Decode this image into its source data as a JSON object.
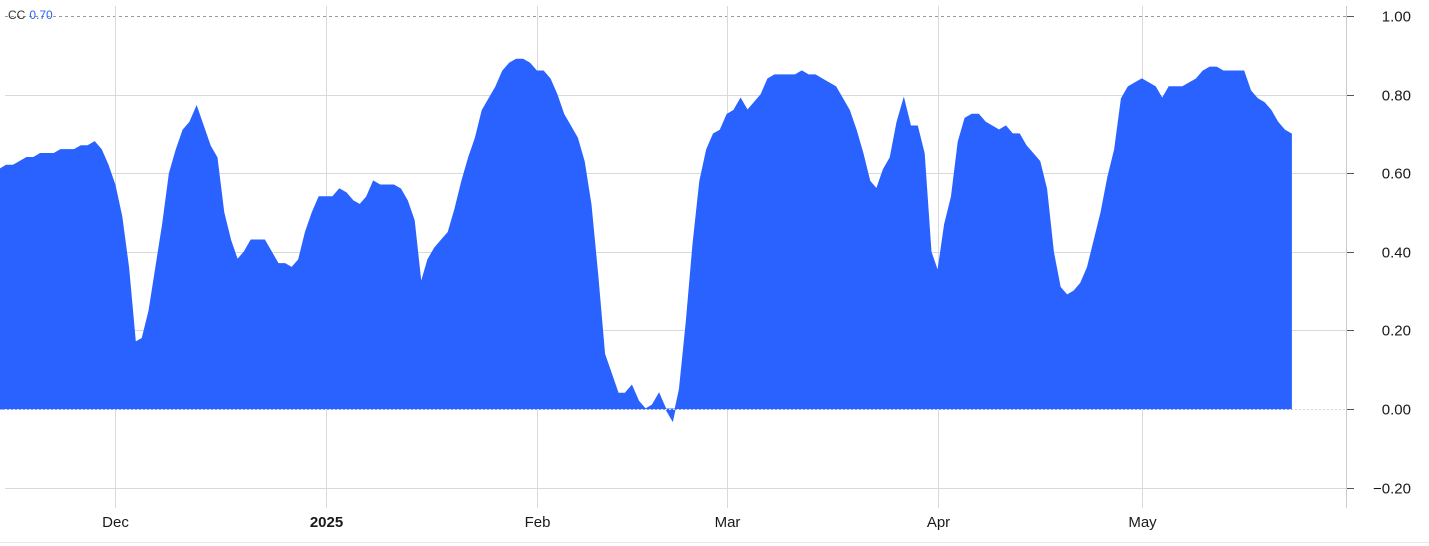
{
  "legend": {
    "name": "CC",
    "value": "0.70"
  },
  "colors": {
    "area": "#2962ff",
    "grid": "#d9d9d9",
    "axis_text": "#1a1a1a",
    "legend_value": "#2962ff"
  },
  "chart_data": {
    "type": "area",
    "series": [
      {
        "color": "#2962ff",
        "points": [
          [
            "2024-11-11",
            0.67
          ],
          [
            "2024-11-12",
            0.63
          ],
          [
            "2024-11-13",
            0.62
          ],
          [
            "2024-11-14",
            0.61
          ],
          [
            "2024-11-15",
            0.62
          ],
          [
            "2024-11-16",
            0.62
          ],
          [
            "2024-11-17",
            0.63
          ],
          [
            "2024-11-18",
            0.64
          ],
          [
            "2024-11-19",
            0.64
          ],
          [
            "2024-11-20",
            0.65
          ],
          [
            "2024-11-21",
            0.65
          ],
          [
            "2024-11-22",
            0.65
          ],
          [
            "2024-11-23",
            0.66
          ],
          [
            "2024-11-24",
            0.66
          ],
          [
            "2024-11-25",
            0.66
          ],
          [
            "2024-11-26",
            0.67
          ],
          [
            "2024-11-27",
            0.67
          ],
          [
            "2024-11-28",
            0.68
          ],
          [
            "2024-11-29",
            0.66
          ],
          [
            "2024-11-30",
            0.62
          ],
          [
            "2024-12-01",
            0.57
          ],
          [
            "2024-12-02",
            0.49
          ],
          [
            "2024-12-03",
            0.36
          ],
          [
            "2024-12-04",
            0.17
          ],
          [
            "2024-12-05",
            0.18
          ],
          [
            "2024-12-06",
            0.25
          ],
          [
            "2024-12-07",
            0.36
          ],
          [
            "2024-12-08",
            0.47
          ],
          [
            "2024-12-09",
            0.6
          ],
          [
            "2024-12-10",
            0.66
          ],
          [
            "2024-12-11",
            0.71
          ],
          [
            "2024-12-12",
            0.73
          ],
          [
            "2024-12-13",
            0.77
          ],
          [
            "2024-12-14",
            0.72
          ],
          [
            "2024-12-15",
            0.67
          ],
          [
            "2024-12-16",
            0.64
          ],
          [
            "2024-12-17",
            0.5
          ],
          [
            "2024-12-18",
            0.43
          ],
          [
            "2024-12-19",
            0.38
          ],
          [
            "2024-12-20",
            0.4
          ],
          [
            "2024-12-21",
            0.43
          ],
          [
            "2024-12-22",
            0.43
          ],
          [
            "2024-12-23",
            0.43
          ],
          [
            "2024-12-24",
            0.4
          ],
          [
            "2024-12-25",
            0.37
          ],
          [
            "2024-12-26",
            0.37
          ],
          [
            "2024-12-27",
            0.36
          ],
          [
            "2024-12-28",
            0.38
          ],
          [
            "2024-12-29",
            0.45
          ],
          [
            "2024-12-30",
            0.5
          ],
          [
            "2024-12-31",
            0.54
          ],
          [
            "2025-01-01",
            0.54
          ],
          [
            "2025-01-02",
            0.54
          ],
          [
            "2025-01-03",
            0.56
          ],
          [
            "2025-01-04",
            0.55
          ],
          [
            "2025-01-05",
            0.53
          ],
          [
            "2025-01-06",
            0.52
          ],
          [
            "2025-01-07",
            0.54
          ],
          [
            "2025-01-08",
            0.58
          ],
          [
            "2025-01-09",
            0.57
          ],
          [
            "2025-01-10",
            0.57
          ],
          [
            "2025-01-11",
            0.57
          ],
          [
            "2025-01-12",
            0.56
          ],
          [
            "2025-01-13",
            0.53
          ],
          [
            "2025-01-14",
            0.48
          ],
          [
            "2025-01-15",
            0.32
          ],
          [
            "2025-01-16",
            0.38
          ],
          [
            "2025-01-17",
            0.41
          ],
          [
            "2025-01-18",
            0.43
          ],
          [
            "2025-01-19",
            0.45
          ],
          [
            "2025-01-20",
            0.51
          ],
          [
            "2025-01-21",
            0.58
          ],
          [
            "2025-01-22",
            0.64
          ],
          [
            "2025-01-23",
            0.69
          ],
          [
            "2025-01-24",
            0.76
          ],
          [
            "2025-01-25",
            0.79
          ],
          [
            "2025-01-26",
            0.82
          ],
          [
            "2025-01-27",
            0.86
          ],
          [
            "2025-01-28",
            0.88
          ],
          [
            "2025-01-29",
            0.89
          ],
          [
            "2025-01-30",
            0.89
          ],
          [
            "2025-01-31",
            0.88
          ],
          [
            "2025-02-01",
            0.86
          ],
          [
            "2025-02-02",
            0.86
          ],
          [
            "2025-02-03",
            0.84
          ],
          [
            "2025-02-04",
            0.8
          ],
          [
            "2025-02-05",
            0.75
          ],
          [
            "2025-02-06",
            0.72
          ],
          [
            "2025-02-07",
            0.69
          ],
          [
            "2025-02-08",
            0.63
          ],
          [
            "2025-02-09",
            0.52
          ],
          [
            "2025-02-10",
            0.34
          ],
          [
            "2025-02-11",
            0.14
          ],
          [
            "2025-02-12",
            0.09
          ],
          [
            "2025-02-13",
            0.04
          ],
          [
            "2025-02-14",
            0.04
          ],
          [
            "2025-02-15",
            0.06
          ],
          [
            "2025-02-16",
            0.02
          ],
          [
            "2025-02-17",
            0.0
          ],
          [
            "2025-02-18",
            0.01
          ],
          [
            "2025-02-19",
            0.04
          ],
          [
            "2025-02-20",
            0.0
          ],
          [
            "2025-02-21",
            -0.03
          ],
          [
            "2025-02-22",
            0.05
          ],
          [
            "2025-02-23",
            0.22
          ],
          [
            "2025-02-24",
            0.42
          ],
          [
            "2025-02-25",
            0.58
          ],
          [
            "2025-02-26",
            0.66
          ],
          [
            "2025-02-27",
            0.7
          ],
          [
            "2025-02-28",
            0.71
          ],
          [
            "2025-03-01",
            0.75
          ],
          [
            "2025-03-02",
            0.76
          ],
          [
            "2025-03-03",
            0.79
          ],
          [
            "2025-03-04",
            0.76
          ],
          [
            "2025-03-05",
            0.78
          ],
          [
            "2025-03-06",
            0.8
          ],
          [
            "2025-03-07",
            0.84
          ],
          [
            "2025-03-08",
            0.85
          ],
          [
            "2025-03-09",
            0.85
          ],
          [
            "2025-03-10",
            0.85
          ],
          [
            "2025-03-11",
            0.85
          ],
          [
            "2025-03-12",
            0.86
          ],
          [
            "2025-03-13",
            0.85
          ],
          [
            "2025-03-14",
            0.85
          ],
          [
            "2025-03-15",
            0.84
          ],
          [
            "2025-03-16",
            0.83
          ],
          [
            "2025-03-17",
            0.82
          ],
          [
            "2025-03-18",
            0.79
          ],
          [
            "2025-03-19",
            0.76
          ],
          [
            "2025-03-20",
            0.71
          ],
          [
            "2025-03-21",
            0.65
          ],
          [
            "2025-03-22",
            0.58
          ],
          [
            "2025-03-23",
            0.56
          ],
          [
            "2025-03-24",
            0.61
          ],
          [
            "2025-03-25",
            0.64
          ],
          [
            "2025-03-26",
            0.73
          ],
          [
            "2025-03-27",
            0.79
          ],
          [
            "2025-03-28",
            0.72
          ],
          [
            "2025-03-29",
            0.72
          ],
          [
            "2025-03-30",
            0.65
          ],
          [
            "2025-03-31",
            0.4
          ],
          [
            "2025-04-01",
            0.35
          ],
          [
            "2025-04-02",
            0.47
          ],
          [
            "2025-04-03",
            0.54
          ],
          [
            "2025-04-04",
            0.68
          ],
          [
            "2025-04-05",
            0.74
          ],
          [
            "2025-04-06",
            0.75
          ],
          [
            "2025-04-07",
            0.75
          ],
          [
            "2025-04-08",
            0.73
          ],
          [
            "2025-04-09",
            0.72
          ],
          [
            "2025-04-10",
            0.71
          ],
          [
            "2025-04-11",
            0.72
          ],
          [
            "2025-04-12",
            0.7
          ],
          [
            "2025-04-13",
            0.7
          ],
          [
            "2025-04-14",
            0.67
          ],
          [
            "2025-04-15",
            0.65
          ],
          [
            "2025-04-16",
            0.63
          ],
          [
            "2025-04-17",
            0.56
          ],
          [
            "2025-04-18",
            0.4
          ],
          [
            "2025-04-19",
            0.31
          ],
          [
            "2025-04-20",
            0.29
          ],
          [
            "2025-04-21",
            0.3
          ],
          [
            "2025-04-22",
            0.32
          ],
          [
            "2025-04-23",
            0.36
          ],
          [
            "2025-04-24",
            0.43
          ],
          [
            "2025-04-25",
            0.5
          ],
          [
            "2025-04-26",
            0.59
          ],
          [
            "2025-04-27",
            0.66
          ],
          [
            "2025-04-28",
            0.79
          ],
          [
            "2025-04-29",
            0.82
          ],
          [
            "2025-04-30",
            0.83
          ],
          [
            "2025-05-01",
            0.84
          ],
          [
            "2025-05-02",
            0.83
          ],
          [
            "2025-05-03",
            0.82
          ],
          [
            "2025-05-04",
            0.79
          ],
          [
            "2025-05-05",
            0.82
          ],
          [
            "2025-05-06",
            0.82
          ],
          [
            "2025-05-07",
            0.82
          ],
          [
            "2025-05-08",
            0.83
          ],
          [
            "2025-05-09",
            0.84
          ],
          [
            "2025-05-10",
            0.86
          ],
          [
            "2025-05-11",
            0.87
          ],
          [
            "2025-05-12",
            0.87
          ],
          [
            "2025-05-13",
            0.86
          ],
          [
            "2025-05-14",
            0.86
          ],
          [
            "2025-05-15",
            0.86
          ],
          [
            "2025-05-16",
            0.86
          ],
          [
            "2025-05-17",
            0.81
          ],
          [
            "2025-05-18",
            0.79
          ],
          [
            "2025-05-19",
            0.78
          ],
          [
            "2025-05-20",
            0.76
          ],
          [
            "2025-05-21",
            0.73
          ],
          [
            "2025-05-22",
            0.71
          ],
          [
            "2025-05-23",
            0.7
          ]
        ]
      }
    ],
    "x_ticks": [
      {
        "date": "2024-12-01",
        "label": "Dec",
        "bold": false
      },
      {
        "date": "2025-01-01",
        "label": "2025",
        "bold": true
      },
      {
        "date": "2025-02-01",
        "label": "Feb",
        "bold": false
      },
      {
        "date": "2025-03-01",
        "label": "Mar",
        "bold": false
      },
      {
        "date": "2025-04-01",
        "label": "Apr",
        "bold": false
      },
      {
        "date": "2025-05-01",
        "label": "May",
        "bold": false
      }
    ],
    "y_ticks": [
      {
        "value": 1.0,
        "label": "1.00"
      },
      {
        "value": 0.8,
        "label": "0.80"
      },
      {
        "value": 0.6,
        "label": "0.60"
      },
      {
        "value": 0.4,
        "label": "0.40"
      },
      {
        "value": 0.2,
        "label": "0.20"
      },
      {
        "value": 0.0,
        "label": "0.00"
      },
      {
        "value": -0.2,
        "label": "−0.20"
      }
    ],
    "ylim": [
      -0.2,
      1.0
    ],
    "grid": true,
    "y_axis_side": "right",
    "legend_placement": "top-left"
  }
}
